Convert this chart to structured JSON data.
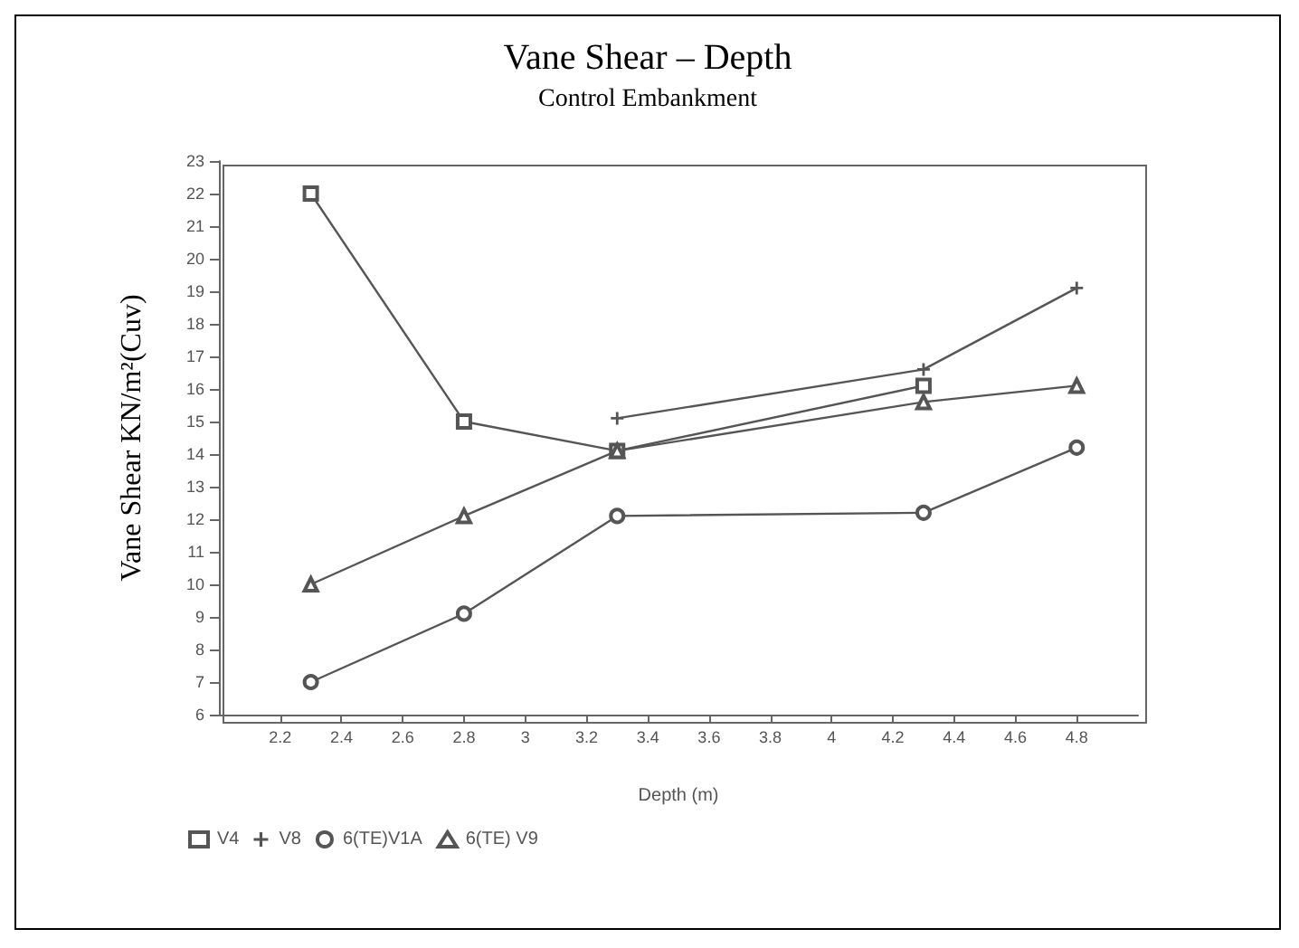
{
  "chart_data": {
    "type": "line",
    "title": "Vane Shear – Depth",
    "subtitle": "Control Embankment",
    "xlabel": "Depth (m)",
    "ylabel": "Vane Shear KN/m²(Cuv)",
    "xlim": [
      2.0,
      5.0
    ],
    "xticks": [
      2.2,
      2.4,
      2.6,
      2.8,
      3,
      3.2,
      3.4,
      3.6,
      3.8,
      4,
      4.2,
      4.4,
      4.6,
      4.8
    ],
    "ylim": [
      6,
      23
    ],
    "yticks": [
      6,
      7,
      8,
      9,
      10,
      11,
      12,
      13,
      14,
      15,
      16,
      17,
      18,
      19,
      20,
      21,
      22,
      23
    ],
    "grid": false,
    "legend": "bottom left",
    "series": [
      {
        "name": "V4",
        "color": "#555555",
        "marker": "square",
        "x": [
          2.3,
          2.8,
          3.3,
          4.3
        ],
        "values": [
          22,
          15,
          14.1,
          16.1
        ]
      },
      {
        "name": "V8",
        "color": "#555555",
        "marker": "cross",
        "x": [
          3.3,
          4.3,
          4.8
        ],
        "values": [
          15.1,
          16.6,
          19.1
        ]
      },
      {
        "name": "6(TE)V1A",
        "color": "#555555",
        "marker": "circle",
        "x": [
          2.3,
          2.8,
          3.3,
          4.3,
          4.8
        ],
        "values": [
          7,
          9.1,
          12.1,
          12.2,
          14.2
        ]
      },
      {
        "name": "6(TE) V9",
        "color": "#555555",
        "marker": "triangle",
        "x": [
          2.3,
          2.8,
          3.3,
          4.3,
          4.8
        ],
        "values": [
          10,
          12.1,
          14.1,
          15.6,
          16.1
        ]
      }
    ]
  }
}
